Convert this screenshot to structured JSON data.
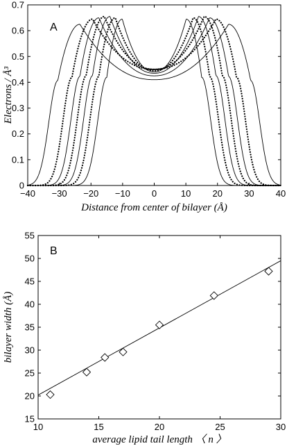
{
  "chart_data": [
    {
      "type": "line",
      "panel_label": "A",
      "xlabel": "Distance from center of bilayer (Å)",
      "ylabel": "Electrons / Å³",
      "xlim": [
        -40,
        40
      ],
      "ylim": [
        0,
        0.7
      ],
      "xticks": [
        "−40",
        "−30",
        "−20",
        "−10",
        "0",
        "10",
        "20",
        "30",
        "40"
      ],
      "yticks": [
        "0",
        "0.1",
        "0.2",
        "0.3",
        "0.4",
        "0.5",
        "0.6",
        "0.7"
      ],
      "grid": false,
      "legend": null,
      "series": [
        {
          "style": "solid",
          "peak_x": 10.1,
          "peak_y": 0.645,
          "outer_x": 15.0,
          "center_y": 0.44
        },
        {
          "style": "dotted",
          "peak_x": 12.3,
          "peak_y": 0.65,
          "outer_x": 17.5,
          "center_y": 0.445
        },
        {
          "style": "solid",
          "peak_x": 14.0,
          "peak_y": 0.655,
          "outer_x": 19.5,
          "center_y": 0.435
        },
        {
          "style": "dotted",
          "peak_x": 15.8,
          "peak_y": 0.655,
          "outer_x": 21.5,
          "center_y": 0.45
        },
        {
          "style": "solid",
          "peak_x": 17.5,
          "peak_y": 0.65,
          "outer_x": 23.5,
          "center_y": 0.425
        },
        {
          "style": "dotted",
          "peak_x": 19.5,
          "peak_y": 0.645,
          "outer_x": 26.0,
          "center_y": 0.45
        },
        {
          "style": "solid",
          "peak_x": 23.5,
          "peak_y": 0.625,
          "outer_x": 30.5,
          "center_y": 0.41
        }
      ]
    },
    {
      "type": "scatter",
      "panel_label": "B",
      "xlabel": "average lipid tail length 〈 n 〉",
      "ylabel": "bilayer width (Å)",
      "xlim": [
        10,
        30
      ],
      "ylim": [
        15,
        55
      ],
      "xticks": [
        "10",
        "15",
        "20",
        "25",
        "30"
      ],
      "yticks": [
        "15",
        "20",
        "25",
        "30",
        "35",
        "40",
        "45",
        "50",
        "55"
      ],
      "grid": false,
      "legend": null,
      "marker": "diamond",
      "points": {
        "x": [
          11,
          14,
          15.5,
          17,
          20,
          24.5,
          29
        ],
        "y": [
          20.3,
          25.2,
          28.4,
          29.6,
          35.5,
          41.9,
          47.2
        ]
      },
      "fit_line": {
        "x": [
          10,
          30
        ],
        "y": [
          20.2,
          49.5
        ]
      }
    }
  ]
}
